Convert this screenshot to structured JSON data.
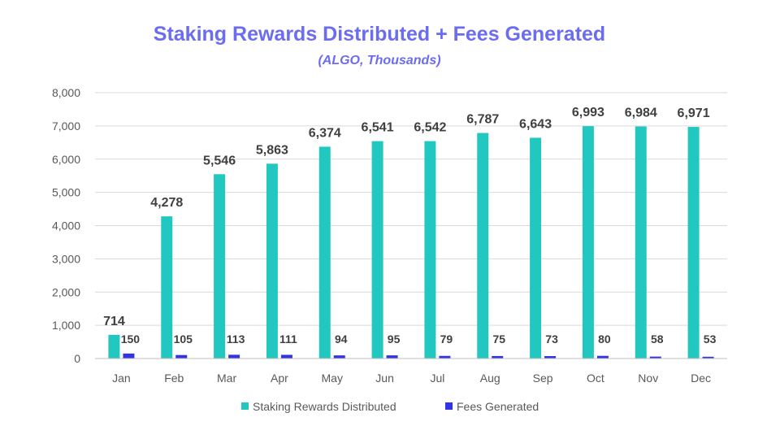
{
  "chart_data": {
    "type": "bar",
    "title": "Staking Rewards Distributed + Fees Generated",
    "subtitle": "(ALGO, Thousands)",
    "xlabel": "",
    "ylabel": "",
    "ylim": [
      0,
      8000
    ],
    "yticks": [
      0,
      1000,
      2000,
      3000,
      4000,
      5000,
      6000,
      7000,
      8000
    ],
    "ytick_labels": [
      "0",
      "1,000",
      "2,000",
      "3,000",
      "4,000",
      "5,000",
      "6,000",
      "7,000",
      "8,000"
    ],
    "grid": true,
    "legend_position": "bottom",
    "categories": [
      "Jan",
      "Feb",
      "Mar",
      "Apr",
      "May",
      "Jun",
      "Jul",
      "Aug",
      "Sep",
      "Oct",
      "Nov",
      "Dec"
    ],
    "series": [
      {
        "name": "Staking Rewards Distributed",
        "color": "#22c7bf",
        "values": [
          714,
          4278,
          5546,
          5863,
          6374,
          6541,
          6542,
          6787,
          6643,
          6993,
          6984,
          6971
        ],
        "labels": [
          "714",
          "4,278",
          "5,546",
          "5,863",
          "6,374",
          "6,541",
          "6,542",
          "6,787",
          "6,643",
          "6,993",
          "6,984",
          "6,971"
        ]
      },
      {
        "name": "Fees Generated",
        "color": "#3333e6",
        "values": [
          150,
          105,
          113,
          111,
          94,
          95,
          79,
          75,
          73,
          80,
          58,
          53
        ],
        "labels": [
          "150",
          "105",
          "113",
          "111",
          "94",
          "95",
          "79",
          "75",
          "73",
          "80",
          "58",
          "53"
        ]
      }
    ]
  }
}
